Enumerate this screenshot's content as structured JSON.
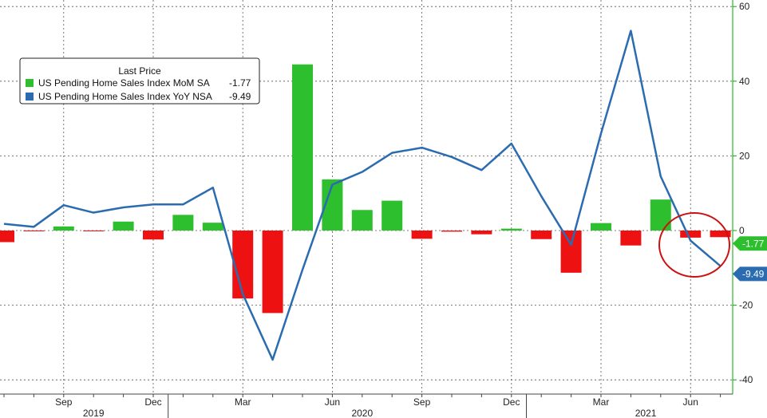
{
  "chart_data": {
    "type": "bar",
    "legend": {
      "title": "Last Price",
      "placement": "top-left",
      "entries": [
        {
          "label": "US Pending Home Sales Index MoM SA",
          "value": "-1.77",
          "color": "#2dbf2d"
        },
        {
          "label": "US Pending Home Sales Index YoY NSA",
          "value": "-9.49",
          "color": "#2b6cb0"
        }
      ]
    },
    "x": [
      "2019-07",
      "2019-08",
      "2019-09",
      "2019-10",
      "2019-11",
      "2019-12",
      "2020-01",
      "2020-02",
      "2020-03",
      "2020-04",
      "2020-05",
      "2020-06",
      "2020-07",
      "2020-08",
      "2020-09",
      "2020-10",
      "2020-11",
      "2020-12",
      "2021-01",
      "2021-02",
      "2021-03",
      "2021-04",
      "2021-05",
      "2021-06",
      "2021-07"
    ],
    "series": [
      {
        "name": "US Pending Home Sales Index MoM SA",
        "type": "bar",
        "values": [
          -3.1,
          -0.2,
          1.1,
          -0.2,
          2.4,
          -2.4,
          4.2,
          2.1,
          -18.2,
          -22.1,
          44.5,
          13.7,
          5.5,
          8.0,
          -2.2,
          -0.3,
          -1.0,
          0.5,
          -2.3,
          -11.3,
          2.0,
          -4.0,
          8.3,
          -1.9,
          -1.77
        ]
      },
      {
        "name": "US Pending Home Sales Index YoY NSA",
        "type": "line",
        "values": [
          1.8,
          1.0,
          6.8,
          4.8,
          6.2,
          7.0,
          7.0,
          11.5,
          -17.0,
          -34.6,
          -10.5,
          12.3,
          15.7,
          20.8,
          22.2,
          19.7,
          16.2,
          23.3,
          9.2,
          -3.8,
          26.0,
          53.5,
          14.5,
          -2.7,
          -9.49
        ]
      }
    ],
    "y_axis": {
      "position": "right",
      "range": [
        -42,
        62
      ],
      "ticks": [
        "60",
        "40",
        "20",
        "0",
        "-20",
        "-40"
      ]
    },
    "x_axis": {
      "month_labels": [
        "Sep",
        "Dec",
        "Mar",
        "Jun",
        "Sep",
        "Dec",
        "Mar",
        "Jun"
      ],
      "year_labels": [
        "2019",
        "2020",
        "2021"
      ]
    },
    "last_value_tags": [
      {
        "text": "-1.77",
        "color": "#2dbf2d"
      },
      {
        "text": "-9.49",
        "color": "#2b6cb0"
      }
    ],
    "grid": true,
    "annotation": "red circle around latest readings",
    "colors": {
      "bar_positive": "#2dbf2d",
      "bar_negative": "#ee1111",
      "line": "#2b6cb0",
      "axis": "#00aa00",
      "circle": "#cc1111"
    }
  }
}
